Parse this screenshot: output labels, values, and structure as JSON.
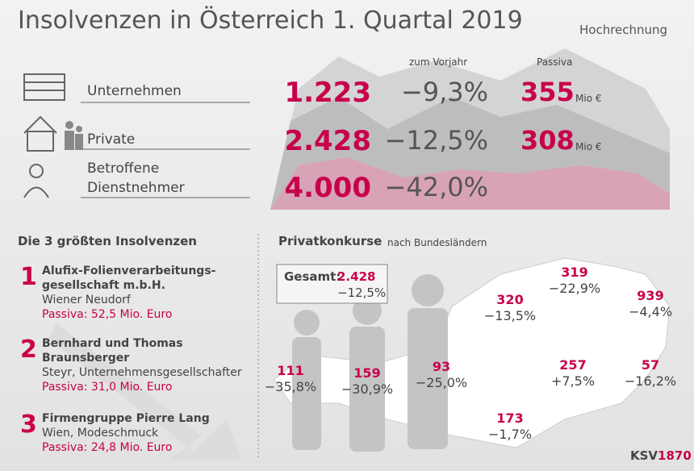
{
  "header": {
    "title": "Insolvenzen in Österreich 1. Quartal 2019",
    "note": "Hochrechnung"
  },
  "stats": {
    "change_header": "zum Vorjahr",
    "passiva_header": "Passiva",
    "rows": [
      {
        "label": "Unternehmen",
        "count": "1.223",
        "change": "−9,3%",
        "passiva": "355",
        "unit": "Mio €"
      },
      {
        "label": "Private",
        "count": "2.428",
        "change": "−12,5%",
        "passiva": "308",
        "unit": "Mio €"
      },
      {
        "label_lines": [
          "Betroffene",
          "Dienstnehmer"
        ],
        "count": "4.000",
        "change": "−42,0%"
      }
    ]
  },
  "largest": {
    "title": "Die 3 größten Insolvenzen",
    "items": [
      {
        "rank": "1",
        "name_lines": [
          "Alufix-Folienverarbeitungs-",
          "gesellschaft m.b.H."
        ],
        "location": "Wiener Neudorf",
        "passiva": "Passiva: 52,5 Mio. Euro"
      },
      {
        "rank": "2",
        "name_lines": [
          "Bernhard und Thomas",
          "Braunsberger"
        ],
        "location": "Steyr, Unternehmensgesellschafter",
        "passiva": "Passiva: 31,0 Mio. Euro"
      },
      {
        "rank": "3",
        "name_lines": [
          "Firmengruppe Pierre Lang"
        ],
        "location": "Wien, Modeschmuck",
        "passiva": "Passiva: 24,8 Mio. Euro"
      }
    ]
  },
  "map": {
    "title": "Privatkonkurse",
    "subtitle": "nach Bundesländern",
    "total_label": "Gesamt:",
    "total_count": "2.428",
    "total_change": "−12,5%",
    "regions": [
      {
        "count": "320",
        "change": "−13,5%"
      },
      {
        "count": "319",
        "change": "−22,9%"
      },
      {
        "count": "939",
        "change": "−4,4%"
      },
      {
        "count": "111",
        "change": "−35,8%"
      },
      {
        "count": "159",
        "change": "−30,9%"
      },
      {
        "count": "93",
        "change": "−25,0%"
      },
      {
        "count": "257",
        "change": "+7,5%"
      },
      {
        "count": "57",
        "change": "−16,2%"
      },
      {
        "count": "173",
        "change": "−1,7%"
      }
    ]
  },
  "brand": {
    "prefix": "KSV",
    "suffix": "1870"
  }
}
